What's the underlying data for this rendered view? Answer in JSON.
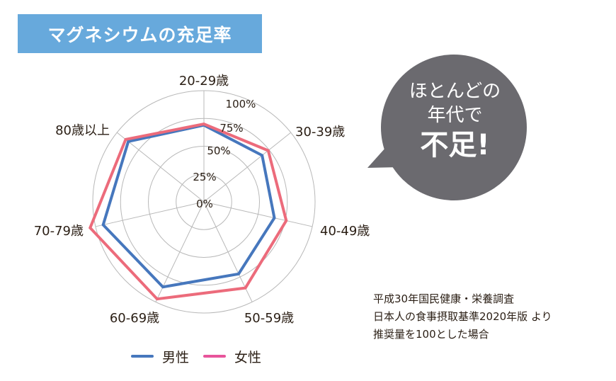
{
  "title": "マグネシウムの充足率",
  "bubble": {
    "line1": "ほとんどの",
    "line2": "年代で",
    "line3": "不足!",
    "color": "#6b6a6f"
  },
  "source": {
    "line1": "平成30年国民健康・栄養調査",
    "line2": "日本人の食事摂取基準2020年版 より",
    "line3": "推奨量を100とした場合"
  },
  "colors": {
    "banner": "#67a9dc",
    "male": "#4677bd",
    "female": "#ec6b7b",
    "legend_female": "#e8559b",
    "grid": "#b8b8b8"
  },
  "chart_data": {
    "type": "radar",
    "title": "マグネシウムの充足率",
    "categories": [
      "20-29歳",
      "30-39歳",
      "40-49歳",
      "50-59歳",
      "60-69歳",
      "70-79歳",
      "80歳以上"
    ],
    "ring_labels": [
      "0%",
      "25%",
      "50%",
      "75%",
      "100%"
    ],
    "ring_values": [
      0,
      25,
      50,
      75,
      100
    ],
    "rlim": [
      0,
      100
    ],
    "unit": "%",
    "grid": true,
    "legend_position": "bottom",
    "series": [
      {
        "name": "男性",
        "values": [
          69,
          67,
          65,
          72,
          85,
          93,
          87
        ]
      },
      {
        "name": "女性",
        "values": [
          70,
          74,
          76,
          86,
          97,
          105,
          90
        ]
      }
    ]
  }
}
